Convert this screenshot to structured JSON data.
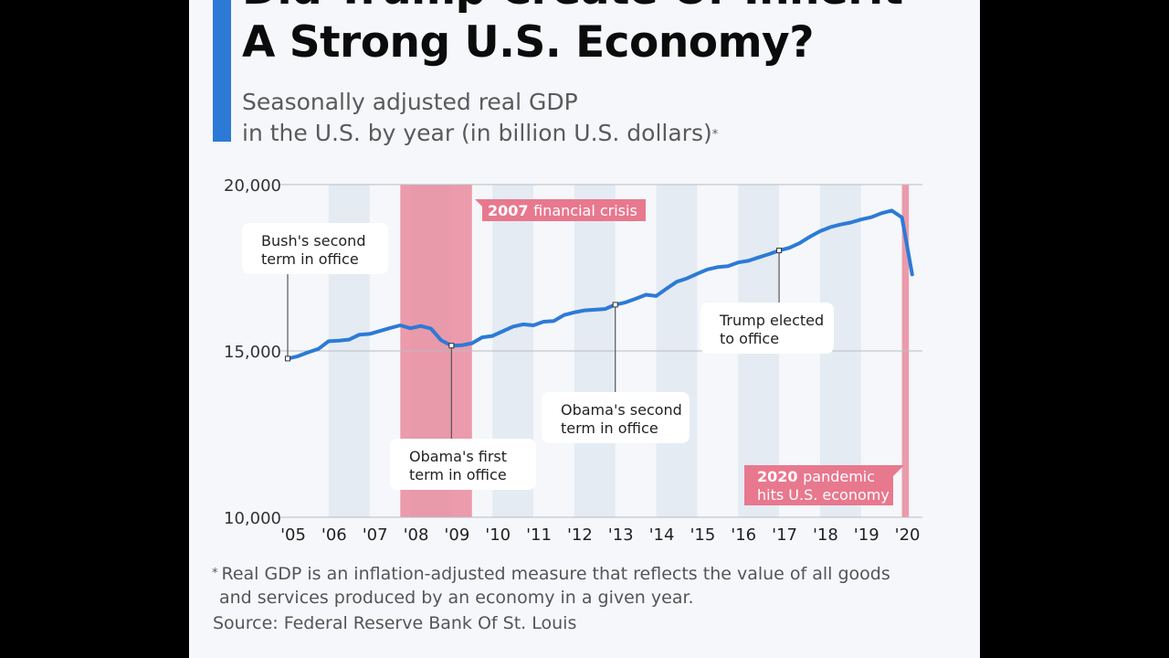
{
  "header": {
    "title_line1": "Did Trump Create Or Inherit",
    "title_line2": "A Strong U.S. Economy?",
    "subtitle_line1": "Seasonally adjusted real GDP",
    "subtitle_line2": "in the U.S. by year (in billion U.S. dollars)",
    "subtitle_marker": "*"
  },
  "colors": {
    "accent": "#2d7ad6",
    "line": "#2d7ad6",
    "crisis_band": "#e98b9c",
    "crisis_tag": "#e8788e",
    "stripe": "#e4ebf3",
    "card_bg": "#f5f7fa"
  },
  "chart_data": {
    "type": "line",
    "title": "Seasonally adjusted real GDP in the U.S. by year (in billion U.S. dollars)",
    "xlabel": "",
    "ylabel": "",
    "ylim": [
      10000,
      20000
    ],
    "y_ticks": [
      "10,000",
      "15,000",
      "20,000"
    ],
    "y_tick_values": [
      10000,
      15000,
      20000
    ],
    "x_range": [
      2005.0,
      2020.5
    ],
    "x_ticks": [
      "'05",
      "'06",
      "'07",
      "'08",
      "'09",
      "'10",
      "'11",
      "'12",
      "'13",
      "'14",
      "'15",
      "'16",
      "'17",
      "'18",
      "'19",
      "'20"
    ],
    "x_tick_values": [
      2005,
      2006,
      2007,
      2008,
      2009,
      2010,
      2011,
      2012,
      2013,
      2014,
      2015,
      2016,
      2017,
      2018,
      2019,
      2020
    ],
    "stripes": [
      [
        2006.0,
        2007.0
      ],
      [
        2008.0,
        2009.0
      ],
      [
        2010.0,
        2011.0
      ],
      [
        2012.0,
        2013.0
      ],
      [
        2014.0,
        2015.0
      ],
      [
        2016.0,
        2017.0
      ],
      [
        2018.0,
        2019.0
      ]
    ],
    "bands": [
      {
        "name": "2007 financial crisis",
        "x0": 2007.75,
        "x1": 2009.5
      },
      {
        "name": "2020 pandemic",
        "x0": 2020.0,
        "x1": 2020.17
      }
    ],
    "series": [
      {
        "name": "Real GDP",
        "x": [
          2005.0,
          2005.25,
          2005.5,
          2005.75,
          2006.0,
          2006.25,
          2006.5,
          2006.75,
          2007.0,
          2007.25,
          2007.5,
          2007.75,
          2008.0,
          2008.25,
          2008.5,
          2008.75,
          2009.0,
          2009.25,
          2009.5,
          2009.75,
          2010.0,
          2010.25,
          2010.5,
          2010.75,
          2011.0,
          2011.25,
          2011.5,
          2011.75,
          2012.0,
          2012.25,
          2012.5,
          2012.75,
          2013.0,
          2013.25,
          2013.5,
          2013.75,
          2014.0,
          2014.25,
          2014.5,
          2014.75,
          2015.0,
          2015.25,
          2015.5,
          2015.75,
          2016.0,
          2016.25,
          2016.5,
          2016.75,
          2017.0,
          2017.25,
          2017.5,
          2017.75,
          2018.0,
          2018.25,
          2018.5,
          2018.75,
          2019.0,
          2019.25,
          2019.5,
          2019.75,
          2020.0,
          2020.25
        ],
        "values": [
          14770,
          14840,
          14960,
          15060,
          15290,
          15310,
          15340,
          15490,
          15510,
          15600,
          15690,
          15770,
          15680,
          15750,
          15670,
          15320,
          15160,
          15170,
          15230,
          15410,
          15450,
          15590,
          15730,
          15800,
          15770,
          15880,
          15900,
          16080,
          16160,
          16220,
          16240,
          16260,
          16390,
          16460,
          16570,
          16690,
          16650,
          16870,
          17080,
          17180,
          17320,
          17450,
          17520,
          17550,
          17660,
          17710,
          17810,
          17910,
          18020,
          18100,
          18240,
          18430,
          18600,
          18720,
          18800,
          18860,
          18950,
          19020,
          19140,
          19220,
          19010,
          17300
        ]
      }
    ],
    "annotations": [
      {
        "lines": [
          "Bush's second",
          "term in office"
        ],
        "x": 2005.0,
        "y": 14770
      },
      {
        "lines": [
          "Obama's first",
          "term in office"
        ],
        "x": 2009.0,
        "y": 15160
      },
      {
        "lines": [
          "Obama's second",
          "term in office"
        ],
        "x": 2013.0,
        "y": 16390
      },
      {
        "lines": [
          "Trump elected",
          "to office"
        ],
        "x": 2017.0,
        "y": 18020
      }
    ],
    "tags": [
      {
        "bold": "2007",
        "rest": "financial crisis",
        "rest2": ""
      },
      {
        "bold": "2020",
        "rest": "pandemic",
        "rest2": "hits U.S. economy"
      }
    ]
  },
  "footer": {
    "footnote_marker": "*",
    "footnote_line1": "Real GDP is an inflation-adjusted measure that reflects the value of all goods",
    "footnote_line2": "and services produced by an economy in a given year.",
    "source": "Source: Federal Reserve Bank Of St. Louis"
  }
}
